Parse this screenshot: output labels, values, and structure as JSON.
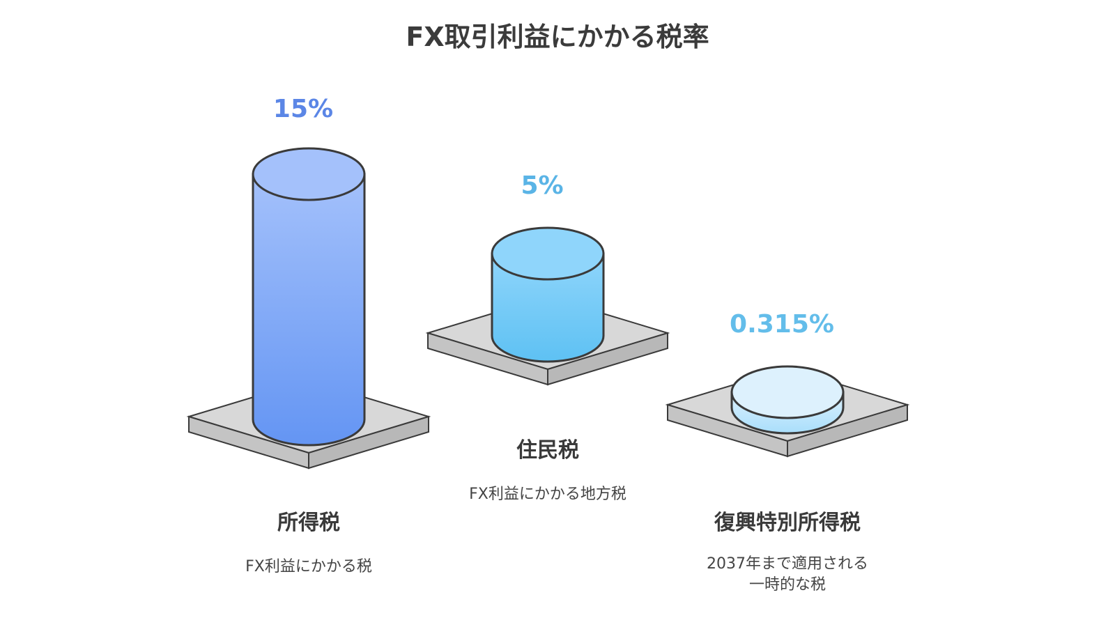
{
  "chart_data": {
    "type": "bar",
    "title": "FX取引利益にかかる税率",
    "categories": [
      "所得税",
      "住民税",
      "復興特別所得税"
    ],
    "values": [
      15,
      5,
      0.315
    ],
    "value_labels": [
      "15%",
      "5%",
      "0.315%"
    ],
    "descriptions": [
      [
        "FX利益にかかる税"
      ],
      [
        "FX利益にかかる地方税"
      ],
      [
        "2037年まで適用される",
        "一時的な税"
      ]
    ],
    "unit": "%",
    "colors": {
      "bar1_top": "#a4c1fb",
      "bar1_bottom": "#6495f3",
      "value1": "#5b86e6",
      "bar2_top": "#8fd5fb",
      "bar2_bottom": "#5ec1f3",
      "value2": "#5ab4e6",
      "bar3_top": "#ddf1fd",
      "bar3_bottom": "#a9defb",
      "value3": "#63bdea",
      "platform": "#d8d8d8",
      "outline": "#3a3a3a"
    }
  }
}
